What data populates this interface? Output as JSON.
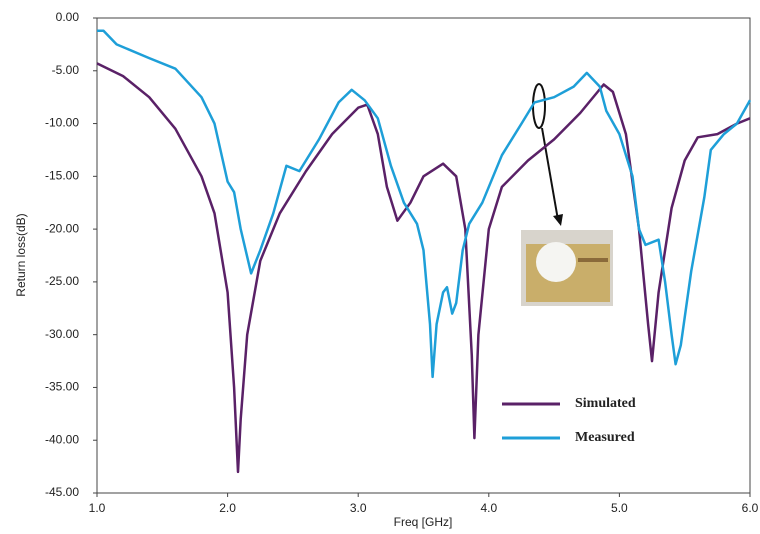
{
  "chart_data": {
    "type": "line",
    "x_label": "Freq [GHz]",
    "y_label": "Return loss(dB)",
    "xlim": [
      1.0,
      6.0
    ],
    "xticks": [
      {
        "value": 1,
        "label": "1.0"
      },
      {
        "value": 2,
        "label": "2.0"
      },
      {
        "value": 3,
        "label": "3.0"
      },
      {
        "value": 4,
        "label": "4.0"
      },
      {
        "value": 5,
        "label": "5.0"
      },
      {
        "value": 6,
        "label": "6.0"
      }
    ],
    "ylim": [
      -45,
      0
    ],
    "yticks": [
      {
        "value": 0,
        "label": "0.00"
      },
      {
        "value": -5,
        "label": "-5.00"
      },
      {
        "value": -10,
        "label": "-10.00"
      },
      {
        "value": -15,
        "label": "-15.00"
      },
      {
        "value": -20,
        "label": "-20.00"
      },
      {
        "value": -25,
        "label": "-25.00"
      },
      {
        "value": -30,
        "label": "-30.00"
      },
      {
        "value": -35,
        "label": "-35.00"
      },
      {
        "value": -40,
        "label": "-40.00"
      },
      {
        "value": -45,
        "label": "-45.00"
      }
    ],
    "series": [
      {
        "name": "Simulated",
        "color": "#5a2167",
        "x": [
          1.0,
          1.2,
          1.4,
          1.6,
          1.8,
          1.9,
          2.0,
          2.05,
          2.08,
          2.1,
          2.15,
          2.25,
          2.4,
          2.6,
          2.8,
          3.0,
          3.07,
          3.15,
          3.22,
          3.3,
          3.4,
          3.5,
          3.65,
          3.75,
          3.82,
          3.87,
          3.89,
          3.92,
          4.0,
          4.1,
          4.3,
          4.5,
          4.7,
          4.88,
          4.95,
          5.05,
          5.15,
          5.22,
          5.25,
          5.3,
          5.4,
          5.5,
          5.6,
          5.75,
          5.9,
          6.0
        ],
        "values": [
          -4.3,
          -5.5,
          -7.5,
          -10.5,
          -15,
          -18.5,
          -26,
          -35,
          -43,
          -38,
          -30,
          -23,
          -18.5,
          -14.5,
          -11,
          -8.5,
          -8.2,
          -11,
          -16,
          -19.2,
          -17.5,
          -15,
          -13.8,
          -15,
          -20,
          -32,
          -39.8,
          -30,
          -20,
          -16,
          -13.5,
          -11.5,
          -9,
          -6.3,
          -7,
          -11,
          -20,
          -29,
          -32.5,
          -26,
          -18,
          -13.5,
          -11.3,
          -11,
          -10,
          -9.5
        ]
      },
      {
        "name": "Measured",
        "color": "#1e9fd8",
        "x": [
          1.0,
          1.05,
          1.15,
          1.4,
          1.6,
          1.8,
          1.9,
          2.0,
          2.05,
          2.1,
          2.18,
          2.25,
          2.35,
          2.45,
          2.55,
          2.7,
          2.85,
          2.95,
          3.05,
          3.15,
          3.25,
          3.35,
          3.45,
          3.5,
          3.55,
          3.57,
          3.6,
          3.65,
          3.68,
          3.72,
          3.75,
          3.8,
          3.85,
          3.95,
          4.1,
          4.25,
          4.35,
          4.5,
          4.65,
          4.75,
          4.85,
          4.9,
          5.0,
          5.1,
          5.15,
          5.2,
          5.3,
          5.35,
          5.4,
          5.43,
          5.47,
          5.55,
          5.65,
          5.7,
          5.8,
          5.9,
          6.0
        ],
        "values": [
          -1.2,
          -1.2,
          -2.5,
          -3.8,
          -4.8,
          -7.5,
          -10,
          -15.5,
          -16.5,
          -20,
          -24.2,
          -22,
          -18.5,
          -14,
          -14.5,
          -11.5,
          -8,
          -6.8,
          -7.8,
          -9.5,
          -14,
          -17.5,
          -19.5,
          -22,
          -29,
          -34,
          -29,
          -26,
          -25.5,
          -28,
          -27,
          -22,
          -19.5,
          -17.5,
          -13,
          -10,
          -8,
          -7.5,
          -6.5,
          -5.2,
          -6.5,
          -8.8,
          -11,
          -15,
          -20,
          -21.5,
          -21,
          -25,
          -30,
          -32.8,
          -31,
          -24,
          -17,
          -12.5,
          -11,
          -10,
          -7.8
        ]
      }
    ]
  }
}
